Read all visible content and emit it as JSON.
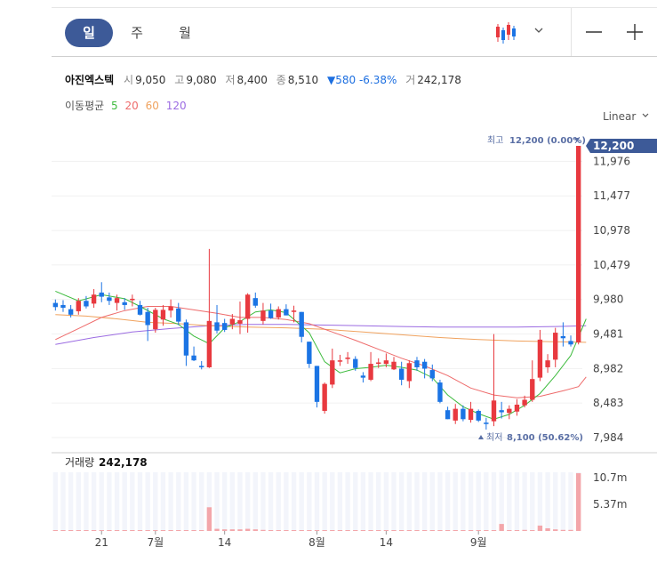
{
  "period_tabs": [
    {
      "label": "일",
      "active": true
    },
    {
      "label": "주",
      "active": false
    },
    {
      "label": "월",
      "active": false
    }
  ],
  "toolbar": {
    "chart_type_icon": "candlestick-icon",
    "dropdown_icon": "chevron-down-icon",
    "zoom_out_icon": "minus-icon",
    "zoom_in_icon": "plus-icon"
  },
  "stock": {
    "name": "아진엑스텍",
    "open_label": "시",
    "open": "9,050",
    "high_label": "고",
    "high": "9,080",
    "low_label": "저",
    "low": "8,400",
    "close_label": "종",
    "close": "8,510",
    "change": "▼580",
    "change_pct": "-6.38%",
    "volume_label": "거",
    "volume": "242,178"
  },
  "moving_average": {
    "label": "이동평균",
    "periods": [
      "5",
      "20",
      "60",
      "120"
    ]
  },
  "scale": {
    "label": "Linear",
    "icon": "chevron-down-icon"
  },
  "colors": {
    "up": "#e8393f",
    "down": "#1b74e4",
    "ma5": "#3dbb3d",
    "ma20": "#ee6b6b",
    "ma60": "#f0a25e",
    "ma120": "#9b6be2",
    "badge": "#3d5a98",
    "volume_bar": "#f3a6aa"
  },
  "chart_data": {
    "type": "candlestick",
    "x_ticks": [
      {
        "label": "21",
        "index": 6
      },
      {
        "label": "7월",
        "index": 13
      },
      {
        "label": "14",
        "index": 22
      },
      {
        "label": "8월",
        "index": 34
      },
      {
        "label": "14",
        "index": 43
      },
      {
        "label": "9월",
        "index": 55
      }
    ],
    "y_ticks": [
      "11,976",
      "11,477",
      "10,978",
      "10,479",
      "9,980",
      "9,481",
      "8,982",
      "8,483",
      "7,984"
    ],
    "ylim": [
      7984,
      12200
    ],
    "price_badge": "12,200",
    "high_marker": {
      "label": "최고",
      "value": "12,200 (0.00%)",
      "icon": "triangle-down-icon"
    },
    "low_marker": {
      "label": "최저",
      "value": "8,100 (50.62%)",
      "icon": "triangle-up-icon"
    },
    "volume_label": "거래량",
    "volume_value": "242,178",
    "volume_ticks": [
      "10.7m",
      "5.37m"
    ],
    "volume_ylim": [
      0,
      14.5
    ],
    "candles": [
      [
        9930,
        9980,
        9820,
        9870
      ],
      [
        9900,
        9970,
        9800,
        9860
      ],
      [
        9840,
        9900,
        9720,
        9760
      ],
      [
        9810,
        10000,
        9760,
        9960
      ],
      [
        9960,
        10030,
        9850,
        9880
      ],
      [
        9920,
        10130,
        9860,
        10050
      ],
      [
        10080,
        10230,
        9940,
        10020
      ],
      [
        10010,
        10080,
        9900,
        9960
      ],
      [
        9930,
        10050,
        9820,
        10000
      ],
      [
        9940,
        10000,
        9830,
        9900
      ],
      [
        9970,
        10050,
        9880,
        9990
      ],
      [
        9900,
        9960,
        9750,
        9760
      ],
      [
        9800,
        9860,
        9380,
        9610
      ],
      [
        9550,
        9860,
        9500,
        9830
      ],
      [
        9690,
        9900,
        9600,
        9830
      ],
      [
        9820,
        9980,
        9720,
        9880
      ],
      [
        9850,
        9930,
        9610,
        9660
      ],
      [
        9650,
        9690,
        9020,
        9170
      ],
      [
        9170,
        9300,
        9090,
        9100
      ],
      [
        9020,
        9090,
        8970,
        9000
      ],
      [
        9000,
        10710,
        8990,
        9670
      ],
      [
        9650,
        9900,
        9490,
        9530
      ],
      [
        9640,
        9700,
        9510,
        9540
      ],
      [
        9620,
        9770,
        9550,
        9700
      ],
      [
        9630,
        9950,
        9480,
        9680
      ],
      [
        9700,
        10070,
        9500,
        10050
      ],
      [
        10000,
        10080,
        9860,
        9890
      ],
      [
        9670,
        9930,
        9620,
        9820
      ],
      [
        9820,
        9920,
        9700,
        9710
      ],
      [
        9720,
        9880,
        9690,
        9840
      ],
      [
        9840,
        9910,
        9750,
        9750
      ],
      [
        9800,
        9890,
        9650,
        9820
      ],
      [
        9800,
        9800,
        9360,
        9440
      ],
      [
        9370,
        9370,
        8990,
        9050
      ],
      [
        9020,
        9020,
        8420,
        8500
      ],
      [
        8370,
        8780,
        8330,
        8760
      ],
      [
        8750,
        9270,
        8700,
        9100
      ],
      [
        9100,
        9180,
        9020,
        9100
      ],
      [
        9120,
        9220,
        9050,
        9140
      ],
      [
        9120,
        9160,
        8950,
        8990
      ],
      [
        8880,
        8930,
        8780,
        8850
      ],
      [
        8820,
        9220,
        8800,
        9050
      ],
      [
        9050,
        9130,
        8990,
        9070
      ],
      [
        9050,
        9200,
        9000,
        9100
      ],
      [
        8970,
        9150,
        8960,
        9080
      ],
      [
        8980,
        9080,
        8740,
        8820
      ],
      [
        8800,
        9100,
        8700,
        9060
      ],
      [
        9100,
        9150,
        8950,
        9000
      ],
      [
        9080,
        9120,
        8840,
        8980
      ],
      [
        8960,
        9040,
        8800,
        8840
      ],
      [
        8780,
        8820,
        8480,
        8500
      ],
      [
        8380,
        8430,
        8250,
        8250
      ],
      [
        8230,
        8470,
        8180,
        8400
      ],
      [
        8400,
        8450,
        8220,
        8250
      ],
      [
        8240,
        8500,
        8200,
        8400
      ],
      [
        8370,
        8390,
        8210,
        8230
      ],
      [
        8200,
        8270,
        8100,
        8180
      ],
      [
        8220,
        9480,
        8150,
        8520
      ],
      [
        8380,
        8500,
        8260,
        8350
      ],
      [
        8340,
        8450,
        8250,
        8400
      ],
      [
        8360,
        8540,
        8300,
        8460
      ],
      [
        8450,
        8590,
        8420,
        8530
      ],
      [
        8530,
        9100,
        8500,
        8830
      ],
      [
        8850,
        9540,
        8800,
        9400
      ],
      [
        9000,
        9190,
        8920,
        9100
      ],
      [
        9110,
        9570,
        9000,
        9500
      ],
      [
        9450,
        9650,
        9300,
        9420
      ],
      [
        9380,
        9460,
        9300,
        9330
      ],
      [
        9360,
        12200,
        9330,
        12200
      ]
    ],
    "volume": [
      0.05,
      0.05,
      0.05,
      0.05,
      0.05,
      0.05,
      0.05,
      0.05,
      0.05,
      0.05,
      0.05,
      0.05,
      0.05,
      0.05,
      0.05,
      0.05,
      0.05,
      0.05,
      0.05,
      0.05,
      4.4,
      0.4,
      0.3,
      0.3,
      0.3,
      0.4,
      0.3,
      0.2,
      0.1,
      0.1,
      0.05,
      0.05,
      0.05,
      0.05,
      0.05,
      0.05,
      0.05,
      0.05,
      0.05,
      0.05,
      0.05,
      0.05,
      0.05,
      0.05,
      0.05,
      0.05,
      0.05,
      0.05,
      0.05,
      0.05,
      0.05,
      0.05,
      0.05,
      0.05,
      0.05,
      0.05,
      0.05,
      0.05,
      1.3,
      0.1,
      0.1,
      0.2,
      0.05,
      1.0,
      0.5,
      0.3,
      0.2,
      0.2,
      10.7
    ],
    "ma5": [
      [
        0,
        10100
      ],
      [
        3,
        9960
      ],
      [
        6,
        10050
      ],
      [
        9,
        9990
      ],
      [
        11,
        9880
      ],
      [
        14,
        9700
      ],
      [
        16,
        9620
      ],
      [
        18,
        9450
      ],
      [
        20,
        9340
      ],
      [
        22,
        9570
      ],
      [
        24,
        9660
      ],
      [
        26,
        9800
      ],
      [
        28,
        9830
      ],
      [
        30,
        9790
      ],
      [
        33,
        9500
      ],
      [
        35,
        9080
      ],
      [
        37,
        8920
      ],
      [
        39,
        8980
      ],
      [
        41,
        9000
      ],
      [
        43,
        9030
      ],
      [
        45,
        9000
      ],
      [
        47,
        8960
      ],
      [
        49,
        8850
      ],
      [
        51,
        8600
      ],
      [
        53,
        8430
      ],
      [
        55,
        8330
      ],
      [
        57,
        8250
      ],
      [
        59,
        8320
      ],
      [
        61,
        8450
      ],
      [
        63,
        8620
      ],
      [
        65,
        8880
      ],
      [
        67,
        9170
      ],
      [
        69,
        9700
      ]
    ],
    "ma20": [
      [
        0,
        9400
      ],
      [
        3,
        9560
      ],
      [
        6,
        9720
      ],
      [
        9,
        9820
      ],
      [
        12,
        9880
      ],
      [
        15,
        9880
      ],
      [
        18,
        9830
      ],
      [
        21,
        9780
      ],
      [
        24,
        9720
      ],
      [
        27,
        9720
      ],
      [
        30,
        9690
      ],
      [
        33,
        9630
      ],
      [
        36,
        9510
      ],
      [
        39,
        9390
      ],
      [
        42,
        9260
      ],
      [
        45,
        9130
      ],
      [
        48,
        9020
      ],
      [
        51,
        8880
      ],
      [
        54,
        8700
      ],
      [
        57,
        8600
      ],
      [
        60,
        8560
      ],
      [
        63,
        8580
      ],
      [
        66,
        8660
      ],
      [
        68,
        8720
      ],
      [
        69,
        8860
      ]
    ],
    "ma60": [
      [
        0,
        9760
      ],
      [
        4,
        9740
      ],
      [
        8,
        9700
      ],
      [
        12,
        9650
      ],
      [
        16,
        9630
      ],
      [
        20,
        9600
      ],
      [
        25,
        9580
      ],
      [
        30,
        9570
      ],
      [
        35,
        9550
      ],
      [
        40,
        9510
      ],
      [
        45,
        9470
      ],
      [
        50,
        9430
      ],
      [
        55,
        9400
      ],
      [
        60,
        9380
      ],
      [
        65,
        9370
      ],
      [
        69,
        9360
      ]
    ],
    "ma120": [
      [
        0,
        9330
      ],
      [
        5,
        9430
      ],
      [
        10,
        9510
      ],
      [
        15,
        9560
      ],
      [
        20,
        9600
      ],
      [
        25,
        9620
      ],
      [
        30,
        9620
      ],
      [
        35,
        9610
      ],
      [
        40,
        9600
      ],
      [
        45,
        9590
      ],
      [
        50,
        9580
      ],
      [
        55,
        9580
      ],
      [
        60,
        9580
      ],
      [
        65,
        9590
      ],
      [
        69,
        9600
      ]
    ]
  }
}
